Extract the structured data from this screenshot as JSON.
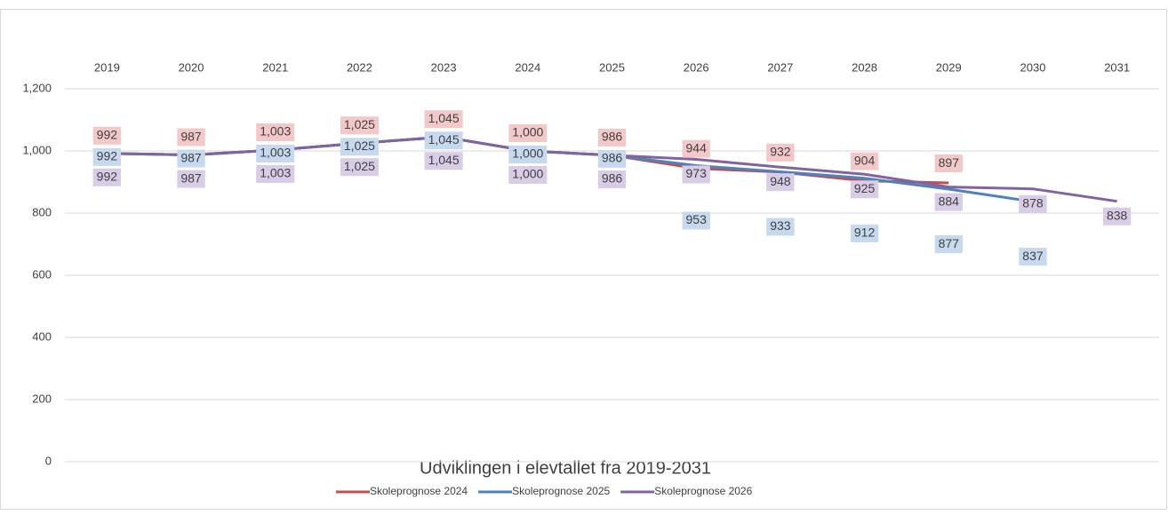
{
  "chart_data": {
    "type": "line",
    "title": "Udviklingen i elevtallet fra 2019-2031",
    "categories": [
      "2019",
      "2020",
      "2021",
      "2022",
      "2023",
      "2024",
      "2025",
      "2026",
      "2027",
      "2028",
      "2029",
      "2030",
      "2031"
    ],
    "series": [
      {
        "name": "Skoleprognose 2024",
        "color": "#c0504d",
        "values": [
          992,
          987,
          1003,
          1025,
          1045,
          1000,
          986,
          944,
          932,
          904,
          897,
          null,
          null
        ],
        "value_labels": [
          "992",
          "987",
          "1,003",
          "1,025",
          "1,045",
          "1,000",
          "986",
          "944",
          "932",
          "904",
          "897",
          null,
          null
        ]
      },
      {
        "name": "Skoleprognose 2025",
        "color": "#4f81bd",
        "values": [
          992,
          987,
          1003,
          1025,
          1045,
          1000,
          986,
          953,
          933,
          912,
          877,
          837,
          null
        ],
        "value_labels": [
          "992",
          "987",
          "1,003",
          "1,025",
          "1,045",
          "1,000",
          "986",
          "953",
          "933",
          "912",
          "877",
          "837",
          null
        ]
      },
      {
        "name": "Skoleprognose 2026",
        "color": "#8064a2",
        "values": [
          992,
          987,
          1003,
          1025,
          1045,
          1000,
          986,
          973,
          948,
          925,
          884,
          878,
          838
        ],
        "value_labels": [
          "992",
          "987",
          "1,003",
          "1,025",
          "1,045",
          "1,000",
          "986",
          "973",
          "948",
          "925",
          "884",
          "878",
          "838"
        ]
      }
    ],
    "ylim": [
      0,
      1200
    ],
    "yticks": [
      0,
      200,
      400,
      600,
      800,
      {
        "value": 1000,
        "label": "1,000"
      },
      {
        "value": 1200,
        "label": "1,200"
      }
    ],
    "grid": true,
    "legend": "bottom"
  }
}
